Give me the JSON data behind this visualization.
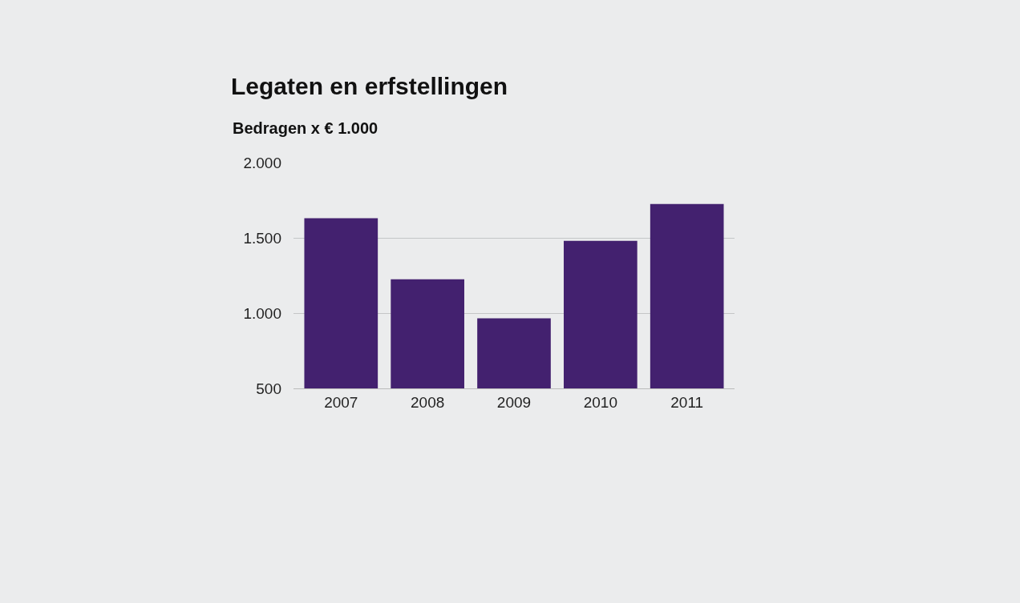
{
  "chart_data": {
    "type": "bar",
    "title": "Legaten en erfstellingen",
    "subtitle": "Bedragen x € 1.000",
    "categories": [
      "2007",
      "2008",
      "2009",
      "2010",
      "2011"
    ],
    "values": [
      1630,
      1225,
      965,
      1480,
      1725
    ],
    "color": "#43216f",
    "ylim": [
      500,
      2000
    ],
    "yticks": [
      {
        "value": 500,
        "label": "500"
      },
      {
        "value": 1000,
        "label": "1.000"
      },
      {
        "value": 1500,
        "label": "1.500"
      },
      {
        "value": 2000,
        "label": "2.000"
      }
    ],
    "grid": "y",
    "legend": false
  }
}
